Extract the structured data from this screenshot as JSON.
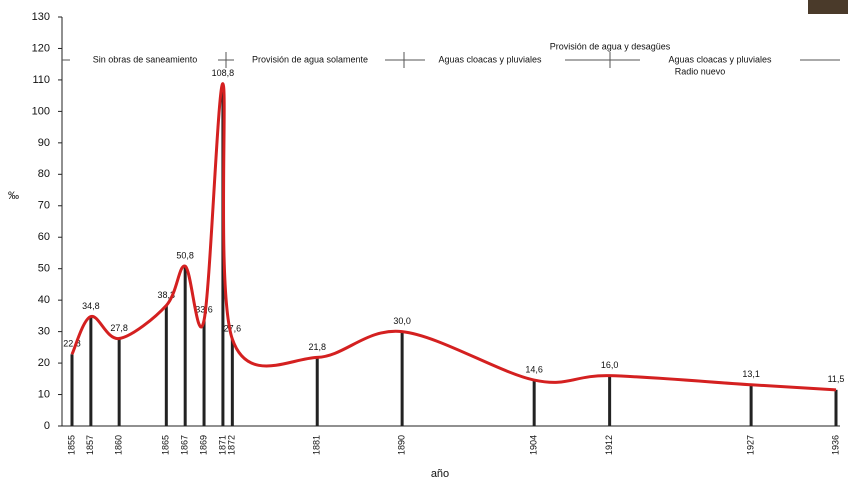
{
  "chart_data": {
    "type": "bar-line",
    "y_label": "‰",
    "x_label": "año",
    "x": [
      1855,
      1857,
      1860,
      1865,
      1867,
      1869,
      1871,
      1872,
      1881,
      1890,
      1904,
      1912,
      1927,
      1936
    ],
    "values": [
      22.8,
      34.8,
      27.8,
      38.3,
      50.8,
      33.6,
      108.8,
      27.6,
      21.8,
      30.0,
      14.6,
      16.0,
      13.1,
      11.5
    ],
    "value_labels": [
      "22,8",
      "34,8",
      "27,8",
      "38,3",
      "50,8",
      "33,6",
      "108,8",
      "27,6",
      "21,8",
      "30,0",
      "14,6",
      "16,0",
      "13,1",
      "11,5"
    ],
    "bar_color": "#222222",
    "line_color": "#d42020",
    "xlim": [
      1855,
      1936
    ],
    "ylim": [
      0,
      130
    ],
    "yticks": [
      0,
      10,
      20,
      30,
      40,
      50,
      60,
      70,
      80,
      90,
      100,
      110,
      120,
      130
    ],
    "annotations": [
      "Sin obras de saneamiento",
      "Provisión de agua solamente",
      "Aguas cloacas y pluviales",
      "Provisión de agua y desagües",
      "Aguas cloacas y pluviales",
      "Radio nuevo"
    ]
  }
}
